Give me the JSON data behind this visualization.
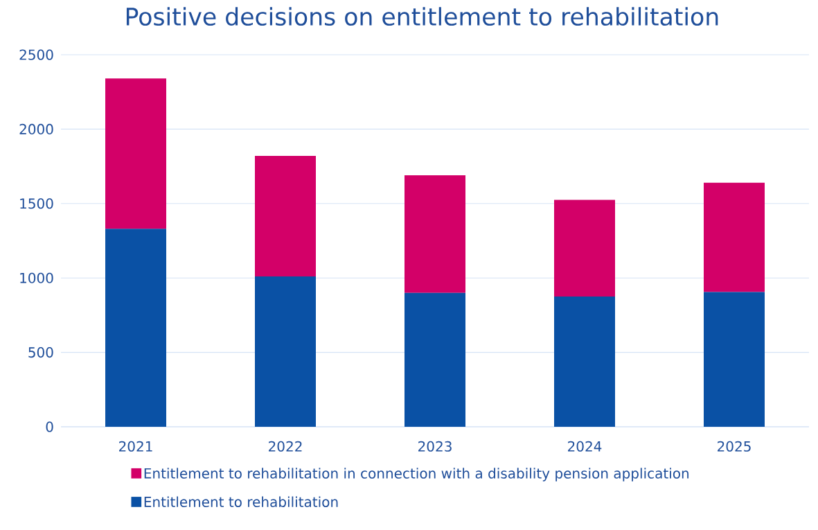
{
  "chart_data": {
    "type": "bar",
    "stacked": true,
    "title": "Positive decisions on entitlement to rehabilitation",
    "categories": [
      "2021",
      "2022",
      "2023",
      "2024",
      "2025"
    ],
    "series": [
      {
        "name": "Entitlement to rehabilitation",
        "color": "#0a51a5",
        "values": [
          1330,
          1010,
          900,
          875,
          905
        ]
      },
      {
        "name": "Entitlement to rehabilitation in connection with a disability pension application",
        "color": "#d30068",
        "values": [
          1010,
          810,
          790,
          650,
          735
        ]
      }
    ],
    "ylim": [
      0,
      2500
    ],
    "yticks": [
      0,
      500,
      1000,
      1500,
      2000,
      2500
    ],
    "grid": "y",
    "legend": "bottom"
  }
}
